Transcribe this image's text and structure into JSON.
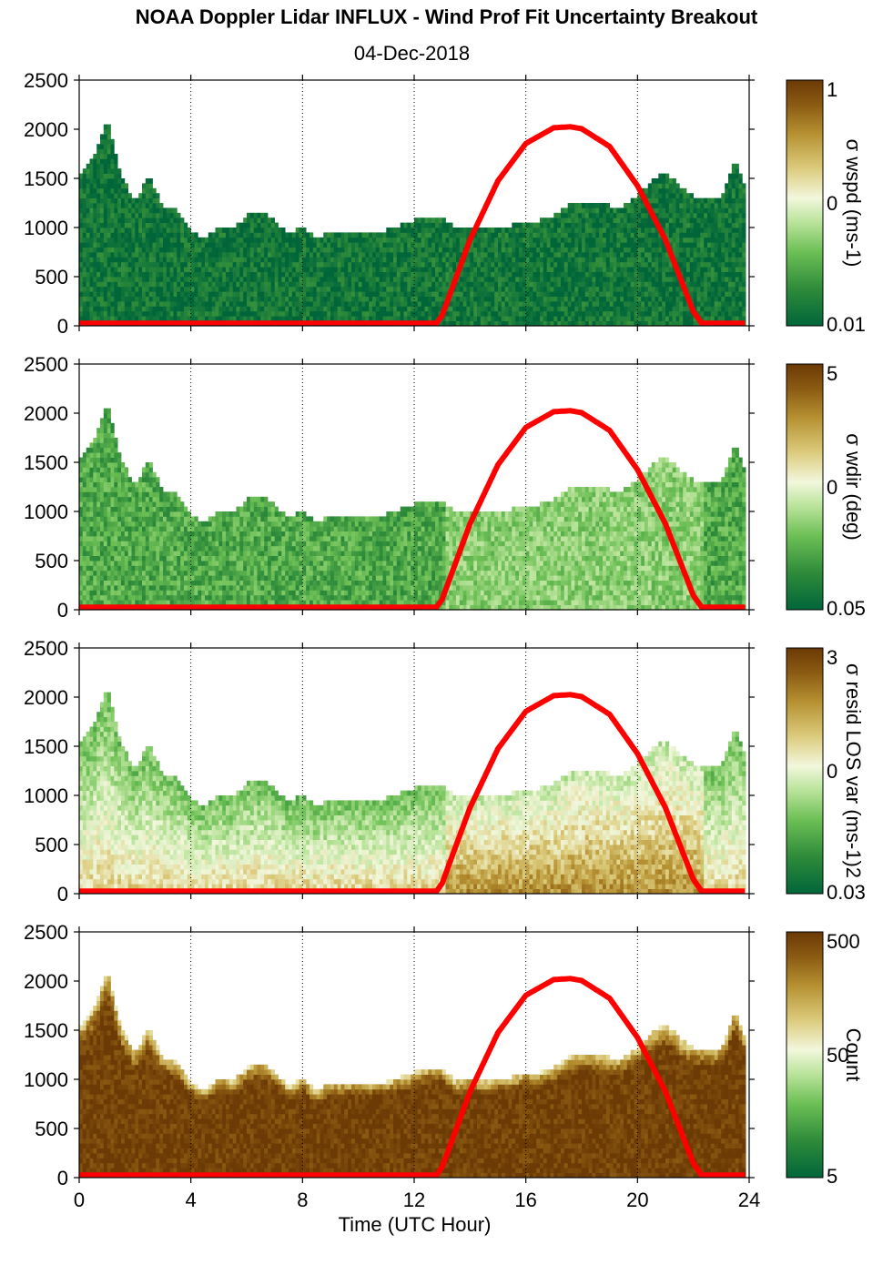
{
  "title": "NOAA Doppler Lidar INFLUX - Wind Prof Fit Uncertainty Breakout",
  "subtitle": "04-Dec-2018",
  "xlabel": "Time (UTC Hour)",
  "colors": {
    "sun_curve": "#ff0000",
    "grid": "#000000",
    "colormap": [
      "#00663a",
      "#2e8b3a",
      "#6cbf55",
      "#b9e39a",
      "#f2f7dc",
      "#dccb7c",
      "#b69132",
      "#8b5a12",
      "#6b3a05"
    ]
  },
  "chart_data": [
    {
      "type": "heatmap",
      "panel": "sigma-wspd",
      "ylabel": "σ wspd (ms-1)",
      "xlim": [
        0,
        24
      ],
      "ylim": [
        0,
        2500
      ],
      "xticks": [
        "0",
        "4",
        "8",
        "12",
        "16",
        "20",
        "24"
      ],
      "yticks": [
        "0",
        "500",
        "1000",
        "1500",
        "2000",
        "2500"
      ],
      "colorbar_labels": [
        "1",
        "0",
        "0.01"
      ],
      "colorbar_scale": "log",
      "grid": "vertical dotted at 4-hour intervals",
      "typical_level": 0.05
    },
    {
      "type": "heatmap",
      "panel": "sigma-wdir",
      "ylabel": "σ wdir (deg)",
      "xlim": [
        0,
        24
      ],
      "ylim": [
        0,
        2500
      ],
      "xticks": [
        "0",
        "4",
        "8",
        "12",
        "16",
        "20",
        "24"
      ],
      "yticks": [
        "0",
        "500",
        "1000",
        "1500",
        "2000",
        "2500"
      ],
      "colorbar_labels": [
        "5",
        "0",
        "0.05"
      ],
      "colorbar_scale": "log",
      "grid": "vertical dotted at 4-hour intervals",
      "typical_level": 0.2
    },
    {
      "type": "heatmap",
      "panel": "sigma-resid-los-var",
      "ylabel": "σ resid LOS var (ms-1)2",
      "xlim": [
        0,
        24
      ],
      "ylim": [
        0,
        2500
      ],
      "xticks": [
        "0",
        "4",
        "8",
        "12",
        "16",
        "20",
        "24"
      ],
      "yticks": [
        "0",
        "500",
        "1000",
        "1500",
        "2000",
        "2500"
      ],
      "colorbar_labels": [
        "3",
        "0",
        "0.03"
      ],
      "colorbar_scale": "log",
      "grid": "vertical dotted at 4-hour intervals",
      "typical_level": 0.45
    },
    {
      "type": "heatmap",
      "panel": "count",
      "ylabel": "Count",
      "xlim": [
        0,
        24
      ],
      "ylim": [
        0,
        2500
      ],
      "xticks": [
        "0",
        "4",
        "8",
        "12",
        "16",
        "20",
        "24"
      ],
      "yticks": [
        "0",
        "500",
        "1000",
        "1500",
        "2000",
        "2500"
      ],
      "colorbar_labels": [
        "500",
        "50",
        "5"
      ],
      "colorbar_scale": "log",
      "grid": "vertical dotted at 4-hour intervals",
      "typical_level": 0.95
    }
  ],
  "sun_elevation_curve": {
    "x": [
      0,
      12.8,
      13.0,
      14.0,
      15.0,
      16.0,
      17.0,
      17.6,
      18.0,
      19.0,
      20.0,
      21.0,
      22.0,
      22.3,
      24
    ],
    "y": [
      0,
      0,
      80,
      850,
      1450,
      1830,
      1990,
      2000,
      1980,
      1800,
      1400,
      850,
      120,
      0,
      0
    ]
  },
  "profile_top_height": {
    "x": [
      0,
      0.5,
      1.0,
      1.5,
      2.0,
      2.5,
      3.0,
      3.5,
      4.0,
      4.5,
      5.0,
      5.5,
      6.0,
      6.5,
      7.0,
      7.5,
      8.0,
      8.5,
      9.0,
      9.5,
      10.0,
      10.5,
      11.0,
      11.5,
      12.0,
      12.5,
      13.0,
      13.5,
      14.0,
      14.5,
      15.0,
      15.5,
      16.0,
      16.5,
      17.0,
      17.5,
      18.0,
      18.5,
      19.0,
      19.5,
      20.0,
      20.5,
      21.0,
      21.5,
      22.0,
      22.5,
      23.0,
      23.5,
      23.8
    ],
    "y": [
      1500,
      1700,
      2100,
      1500,
      1250,
      1500,
      1200,
      1150,
      950,
      850,
      1000,
      950,
      1100,
      1150,
      1050,
      900,
      1000,
      850,
      950,
      950,
      950,
      950,
      950,
      1000,
      1050,
      1100,
      1100,
      950,
      1000,
      950,
      1000,
      1000,
      1050,
      1050,
      1100,
      1200,
      1250,
      1250,
      1200,
      1200,
      1300,
      1450,
      1550,
      1400,
      1300,
      1300,
      1300,
      1700,
      1450
    ]
  }
}
